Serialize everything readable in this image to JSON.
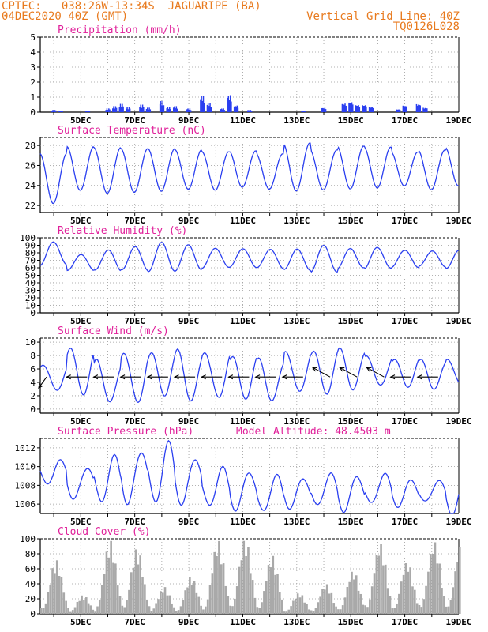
{
  "header": {
    "line1": "CPTEC:   038:26W-13:34S  JAGUARIPE (BA)",
    "line2": "04DEC2020 40Z (GMT)",
    "grid_note": "Vertical Grid Line: 40Z",
    "code": "TQ0126L028"
  },
  "colors": {
    "header": "#e87a1e",
    "title": "#e0209a",
    "line": "#2a3ff0",
    "bar": "#2a3ff0",
    "cloud": "#a9a9a9",
    "grid": "#999999",
    "wind_arrow": "#000000"
  },
  "x_axis": {
    "domain_days": [
      "03DEC 12Z",
      "19DEC 00Z"
    ],
    "ticks": [
      {
        "label": "5DEC",
        "day": 5
      },
      {
        "label": "7DEC",
        "day": 7
      },
      {
        "label": "9DEC",
        "day": 9
      },
      {
        "label": "11DEC",
        "day": 11
      },
      {
        "label": "13DEC",
        "day": 13
      },
      {
        "label": "15DEC",
        "day": 15
      },
      {
        "label": "17DEC",
        "day": 17
      },
      {
        "label": "19DEC",
        "day": 19
      }
    ]
  },
  "chart_data": [
    {
      "type": "bar",
      "title": "Precipitation (mm/h)",
      "ylim": [
        0,
        5
      ],
      "yticks": [
        "0",
        "1",
        "2",
        "3",
        "4",
        "5"
      ],
      "grid": true,
      "events": [
        {
          "day": "4DEC 00Z",
          "value": 0.15
        },
        {
          "day": "4DEC 06Z",
          "value": 0.1
        },
        {
          "day": "5DEC 06Z",
          "value": 0.1
        },
        {
          "day": "6DEC 00Z",
          "value": 0.25
        },
        {
          "day": "6DEC 06Z",
          "value": 0.4
        },
        {
          "day": "6DEC 12Z",
          "value": 0.55
        },
        {
          "day": "6DEC 18Z",
          "value": 0.35
        },
        {
          "day": "7DEC 06Z",
          "value": 0.5
        },
        {
          "day": "7DEC 12Z",
          "value": 0.3
        },
        {
          "day": "8DEC 00Z",
          "value": 0.75
        },
        {
          "day": "8DEC 06Z",
          "value": 0.35
        },
        {
          "day": "8DEC 12Z",
          "value": 0.4
        },
        {
          "day": "9DEC 00Z",
          "value": 0.25
        },
        {
          "day": "9DEC 12Z",
          "value": 1.1
        },
        {
          "day": "9DEC 18Z",
          "value": 0.6
        },
        {
          "day": "10DEC 06Z",
          "value": 0.25
        },
        {
          "day": "10DEC 12Z",
          "value": 1.15
        },
        {
          "day": "10DEC 18Z",
          "value": 0.45
        },
        {
          "day": "11DEC 06Z",
          "value": 0.15
        },
        {
          "day": "13DEC 06Z",
          "value": 0.1
        },
        {
          "day": "14DEC 00Z",
          "value": 0.3
        },
        {
          "day": "14DEC 18Z",
          "value": 0.6
        },
        {
          "day": "15DEC 00Z",
          "value": 0.7
        },
        {
          "day": "15DEC 06Z",
          "value": 0.5
        },
        {
          "day": "15DEC 12Z",
          "value": 0.5
        },
        {
          "day": "15DEC 18Z",
          "value": 0.35
        },
        {
          "day": "16DEC 18Z",
          "value": 0.2
        },
        {
          "day": "17DEC 00Z",
          "value": 0.45
        },
        {
          "day": "17DEC 12Z",
          "value": 0.55
        },
        {
          "day": "17DEC 18Z",
          "value": 0.3
        }
      ]
    },
    {
      "type": "line",
      "title": "Surface Temperature (nC)",
      "ylim": [
        21.3,
        28.8
      ],
      "yticks": [
        "22",
        "24",
        "26",
        "28"
      ],
      "grid": true,
      "daily_min": [
        22.2,
        23.5,
        23.2,
        23.3,
        23.4,
        23.6,
        23.5,
        23.8,
        23.6,
        23.4,
        23.5,
        23.6,
        23.7,
        23.9,
        23.5,
        23.9
      ],
      "daily_max": [
        27.2,
        27.9,
        27.8,
        27.7,
        27.7,
        27.6,
        27.4,
        27.5,
        27.2,
        28.3,
        27.6,
        28.0,
        27.9,
        27.4,
        27.6,
        27.9
      ]
    },
    {
      "type": "line",
      "title": "Relative Humidity (%)",
      "ylim": [
        0,
        100
      ],
      "yticks": [
        "0",
        "10",
        "20",
        "30",
        "40",
        "50",
        "60",
        "70",
        "80",
        "90",
        "100"
      ],
      "grid": true,
      "daily_min": [
        62,
        55,
        56,
        58,
        57,
        57,
        59,
        59,
        59,
        58,
        56,
        60,
        58,
        59,
        61,
        59
      ],
      "daily_max": [
        96,
        79,
        84,
        87,
        92,
        90,
        87,
        87,
        85,
        84,
        88,
        85,
        88,
        85,
        83,
        83
      ]
    },
    {
      "type": "line",
      "title": "Surface Wind (m/s)",
      "ylim": [
        -0.6,
        10.6
      ],
      "yticks": [
        "0",
        "2",
        "4",
        "6",
        "8",
        "10"
      ],
      "grid": true,
      "daily_min": [
        2.7,
        2.5,
        1.0,
        0.7,
        2.3,
        1.2,
        1.4,
        1.8,
        1.3,
        2.3,
        2.5,
        3.0,
        3.3,
        3.4,
        3.1,
        3.5
      ],
      "daily_max": [
        6.8,
        8.9,
        7.2,
        8.8,
        8.3,
        8.6,
        8.8,
        7.8,
        7.3,
        8.9,
        8.7,
        8.8,
        8.1,
        7.5,
        7.2,
        7.5
      ],
      "arrows": [
        {
          "day": "3DEC 12Z",
          "dir": "down-left"
        },
        {
          "day": "5DEC 00Z",
          "dir": "left"
        },
        {
          "day": "6DEC 00Z",
          "dir": "left"
        },
        {
          "day": "7DEC 00Z",
          "dir": "left"
        },
        {
          "day": "8DEC 00Z",
          "dir": "left"
        },
        {
          "day": "9DEC 00Z",
          "dir": "left"
        },
        {
          "day": "10DEC 00Z",
          "dir": "left"
        },
        {
          "day": "11DEC 00Z",
          "dir": "left"
        },
        {
          "day": "12DEC 00Z",
          "dir": "left"
        },
        {
          "day": "13DEC 00Z",
          "dir": "left"
        },
        {
          "day": "14DEC 00Z",
          "dir": "up-left"
        },
        {
          "day": "15DEC 00Z",
          "dir": "up-left"
        },
        {
          "day": "16DEC 00Z",
          "dir": "up-left"
        },
        {
          "day": "17DEC 00Z",
          "dir": "left"
        },
        {
          "day": "18DEC 00Z",
          "dir": "left"
        }
      ]
    },
    {
      "type": "line",
      "title": "Surface Pressure (hPa)",
      "annotation": "Model Altitude: 48.4503 m",
      "ylim": [
        1005.0,
        1013.0
      ],
      "yticks": [
        "1006",
        "1008",
        "1010",
        "1012"
      ],
      "grid": true,
      "daily_min": [
        1008.2,
        1006.5,
        1006.3,
        1006.0,
        1006.2,
        1006.0,
        1005.8,
        1005.4,
        1005.2,
        1005.6,
        1005.8,
        1005.3,
        1006.0,
        1005.8,
        1006.2,
        1005.0
      ],
      "daily_max": [
        1010.6,
        1010.0,
        1011.0,
        1011.8,
        1012.4,
        1011.0,
        1009.8,
        1009.5,
        1009.0,
        1008.8,
        1009.2,
        1009.0,
        1009.2,
        1008.6,
        1008.5,
        1008.8
      ]
    },
    {
      "type": "area",
      "title": "Cloud Cover (%)",
      "ylim": [
        0,
        100
      ],
      "yticks": [
        "0",
        "20",
        "40",
        "60",
        "80",
        "100"
      ],
      "grid": true,
      "daily_peak": [
        72,
        25,
        98,
        88,
        36,
        50,
        98,
        100,
        78,
        28,
        40,
        58,
        95,
        70,
        97,
        93
      ]
    }
  ]
}
